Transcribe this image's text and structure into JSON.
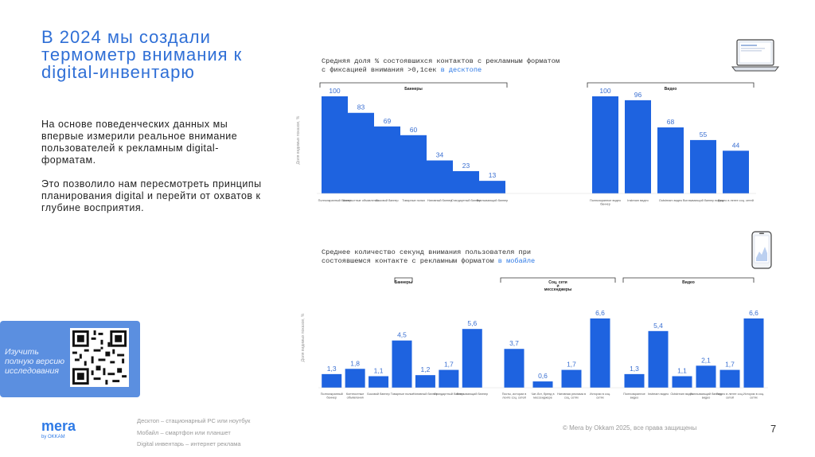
{
  "title": "В 2024 мы создали термометр внимания к digital-инвентарю",
  "body": {
    "para1": "На основе поведенческих данных мы впервые измерили реальное внимание пользователей к рекламным digital-форматам.",
    "para2": "Это позволило нам пересмотреть принципы планирования digital и перейти от охватов к глубине восприятия."
  },
  "qr": {
    "label": "Изучить полную версию исследования"
  },
  "logo": {
    "name": "mera",
    "sub": "by OKKAM"
  },
  "footer": {
    "line1": "Десктоп – стационарный PC или ноутбук",
    "line2": "Мобайл – смартфон или планшет",
    "line3": "Digital инвентарь – интернет реклама",
    "copyright": "© Mera by Okkam 2025, все права защищены",
    "page": "7"
  },
  "colors": {
    "accent": "#2e7ae6",
    "bar": "#1e63e0",
    "title": "#2f6fd6",
    "qr_bg": "#5b8fe0"
  },
  "icons": {
    "desktop": "laptop-icon",
    "mobile": "smartphone-icon"
  },
  "chart_data": [
    {
      "type": "bar",
      "title": "Средняя доля % состоявшихся контактов с рекламным форматом с фиксацией внимания >0,1сек",
      "title_highlight": "в десктопе",
      "ylabel": "Доля видимых показов, %",
      "ylim": [
        0,
        100
      ],
      "groups": [
        {
          "name": "Баннеры",
          "categories": [
            "Полноэкранный баннер",
            "Контекстные объявления",
            "Боковой баннер",
            "Товарные полки",
            "Нативный баннер",
            "Стандартный баннер",
            "Всплывающий баннер"
          ],
          "values": [
            100,
            83,
            69,
            60,
            34,
            23,
            13
          ]
        },
        {
          "name": "Видео",
          "categories": [
            "Полноэкранное видео баннер",
            "Instream видео",
            "Outstream видео",
            "Всплывающий баннер видео",
            "Видео в ленте соц. сетей"
          ],
          "values": [
            100,
            96,
            68,
            55,
            44
          ]
        }
      ]
    },
    {
      "type": "bar",
      "title": "Среднее количество секунд внимания пользователя при состоявшемся контакте с рекламным форматом",
      "title_highlight": "в мобайле",
      "ylabel": "Доля видимых показов, %",
      "groups": [
        {
          "name": "Баннеры",
          "categories": [
            "Полноэкранный баннер",
            "Контекстные объявления",
            "Боковой баннер",
            "Товарные полки",
            "Нативный баннер",
            "Стандартный баннер",
            "Всплывающий баннер"
          ],
          "labels": [
            "1,3",
            "1,8",
            "1,1",
            "4,5",
            "1,2",
            "1,7",
            "5,6"
          ],
          "values": [
            1.3,
            1.8,
            1.1,
            4.5,
            1.2,
            1.7,
            5.6
          ]
        },
        {
          "name": "Соц. сети и мессенджеры",
          "categories": [
            "Посты, истории в ленте соц. сетей",
            "Чат-бот, бренд в мессенджере",
            "Нативная реклама в соц. сетях",
            "Истории в соц. сетях"
          ],
          "labels": [
            "3,7",
            "0,6",
            "1,7",
            "6,6"
          ],
          "values": [
            3.7,
            0.6,
            1.7,
            6.6
          ]
        },
        {
          "name": "Видео",
          "categories": [
            "Полноэкранное видео",
            "Instream видео",
            "Outstream видео",
            "Всплывающий баннер видео",
            "Видео в ленте соц. сетей",
            "Истории в соц. сетях"
          ],
          "labels": [
            "1,3",
            "5,4",
            "1,1",
            "2,1",
            "1,7",
            "6,6"
          ],
          "values": [
            1.3,
            5.4,
            1.1,
            2.1,
            1.7,
            6.6
          ]
        }
      ]
    }
  ]
}
